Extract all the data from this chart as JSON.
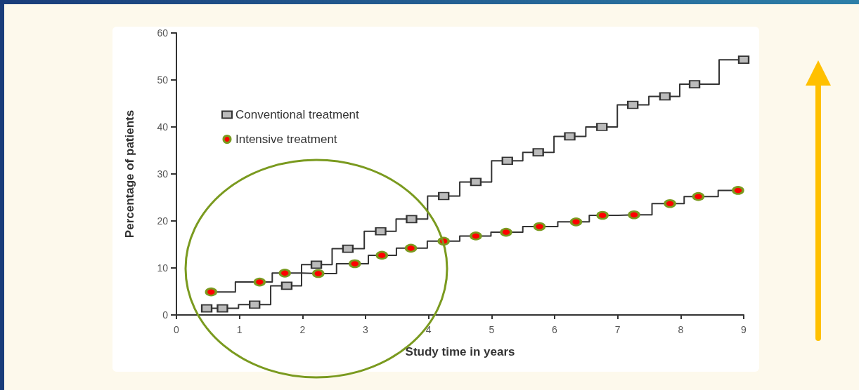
{
  "chart_data": {
    "type": "step",
    "xlabel": "Study time in years",
    "ylabel": "Percentage of patients",
    "xlim": [
      0,
      9
    ],
    "xticks": [
      0,
      1,
      2,
      3,
      4,
      5,
      6,
      7,
      8,
      9
    ],
    "ylim": [
      0,
      60
    ],
    "yticks": [
      0,
      10,
      20,
      30,
      40,
      50,
      60
    ],
    "grid": false,
    "legend": "top left",
    "line_style": "solid",
    "series": [
      {
        "name": "Conventional treatment",
        "color": "#333333",
        "marker": "square",
        "x": [
          0.48,
          0.73,
          1.24,
          1.75,
          2.22,
          2.72,
          3.24,
          3.73,
          4.24,
          4.75,
          5.25,
          5.74,
          6.24,
          6.75,
          7.24,
          7.75,
          8.22,
          9.0
        ],
        "values": [
          1.4,
          1.4,
          2.2,
          6.2,
          10.7,
          14.1,
          17.8,
          20.4,
          25.3,
          28.3,
          32.8,
          34.6,
          38.0,
          40.0,
          44.7,
          46.5,
          49.1,
          54.3
        ]
      },
      {
        "name": "Intensive treatment",
        "color": "#ff0000",
        "marker": "circle",
        "x": [
          0.55,
          1.32,
          1.72,
          2.25,
          2.83,
          3.26,
          3.72,
          4.24,
          4.75,
          5.23,
          5.76,
          6.34,
          6.76,
          7.26,
          7.83,
          8.28,
          8.91
        ],
        "values": [
          4.9,
          7.0,
          8.9,
          8.8,
          10.9,
          12.7,
          14.2,
          15.7,
          16.8,
          17.6,
          18.8,
          19.8,
          21.2,
          21.3,
          23.7,
          25.2,
          26.5
        ]
      }
    ]
  }
}
